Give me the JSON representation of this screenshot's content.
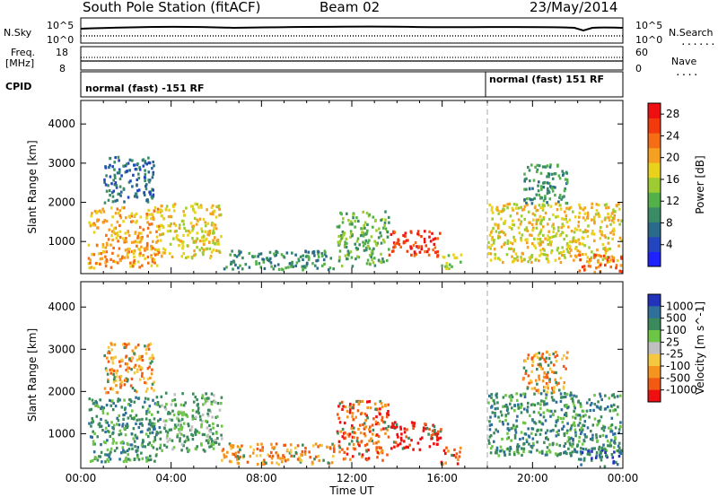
{
  "header": {
    "station": "South Pole Station (fitACF)",
    "beam": "Beam 02",
    "date": "23/May/2014"
  },
  "top_strip": {
    "left_label": "N.Sky",
    "left_ticks": [
      "10^5",
      "10^0"
    ],
    "right_ticks": [
      "10^5",
      "10^0"
    ],
    "right_label": "N.Search",
    "right_marker": "........"
  },
  "freq_strip": {
    "label_line1": "Freq.",
    "label_line2": "[MHz]",
    "left_ticks": [
      "18",
      "8"
    ],
    "right_ticks": [
      "60",
      "0"
    ],
    "right_label": "Nave",
    "right_marker": "...."
  },
  "cpid_strip": {
    "label": "CPID",
    "modes": [
      "normal (fast) -151 RF",
      "normal (fast) 151 RF"
    ]
  },
  "colors": {
    "axis": "#000000",
    "dashed_marker": "#aaaaaa"
  },
  "chart_data": [
    {
      "type": "heatmap",
      "panel": "power",
      "ylabel": "Slant Range [km]",
      "xlabel": "",
      "xlim": [
        "00:00",
        "24:00"
      ],
      "ylim": [
        180,
        4600
      ],
      "yticks": [
        1000,
        2000,
        3000,
        4000
      ],
      "colorbar": {
        "label": "Power [dB]",
        "ticks": [
          "4",
          "8",
          "12",
          "16",
          "20",
          "24",
          "28"
        ],
        "range": [
          0,
          30
        ],
        "colors": [
          "#1f22ff",
          "#2345c0",
          "#2a6a8a",
          "#3a8c66",
          "#52b148",
          "#9ccc32",
          "#e8d21b",
          "#f5a021",
          "#f56d14",
          "#f23a0d",
          "#ee1010"
        ]
      },
      "cpid_change_hour": 18.0,
      "echo_regions": [
        {
          "t0": 0.3,
          "t1": 3.5,
          "r0": 350,
          "r1": 1900,
          "mean_db": 20
        },
        {
          "t0": 3.5,
          "t1": 6.2,
          "r0": 600,
          "r1": 2000,
          "mean_db": 18
        },
        {
          "t0": 1.0,
          "t1": 3.2,
          "r0": 2000,
          "r1": 3200,
          "mean_db": 6
        },
        {
          "t0": 6.2,
          "t1": 11.2,
          "r0": 300,
          "r1": 800,
          "mean_db": 8
        },
        {
          "t0": 11.3,
          "t1": 13.6,
          "r0": 400,
          "r1": 1800,
          "mean_db": 12
        },
        {
          "t0": 13.6,
          "t1": 15.9,
          "r0": 650,
          "r1": 1300,
          "mean_db": 28
        },
        {
          "t0": 15.9,
          "t1": 16.8,
          "r0": 300,
          "r1": 700,
          "mean_db": 14
        },
        {
          "t0": 18.0,
          "t1": 23.9,
          "r0": 500,
          "r1": 2000,
          "mean_db": 18
        },
        {
          "t0": 19.5,
          "t1": 21.5,
          "r0": 2000,
          "r1": 3000,
          "mean_db": 8
        },
        {
          "t0": 22.0,
          "t1": 23.9,
          "r0": 250,
          "r1": 700,
          "mean_db": 24
        }
      ]
    },
    {
      "type": "heatmap",
      "panel": "velocity",
      "ylabel": "Slant Range [km]",
      "xlabel": "Time UT",
      "xlim": [
        "00:00",
        "24:00"
      ],
      "xticks": [
        "00:00",
        "04:00",
        "08:00",
        "12:00",
        "16:00",
        "20:00",
        "00:00"
      ],
      "ylim": [
        180,
        4600
      ],
      "yticks": [
        1000,
        2000,
        3000,
        4000
      ],
      "colorbar": {
        "label": "Velocity [m s^-1]",
        "ticks": [
          "1000",
          "500",
          "100",
          "25",
          "-25",
          "-100",
          "-500",
          "-1000"
        ],
        "colors": [
          "#2233bb",
          "#2f6f9a",
          "#3c8a5c",
          "#6cc544",
          "#c0c0c0",
          "#f5c842",
          "#f5951f",
          "#f25a14",
          "#ee1010"
        ]
      },
      "cpid_change_hour": 18.0,
      "echo_regions": [
        {
          "t0": 0.3,
          "t1": 3.5,
          "r0": 350,
          "r1": 1900,
          "mean_v": 100
        },
        {
          "t0": 3.5,
          "t1": 6.2,
          "r0": 600,
          "r1": 2000,
          "mean_v": 50
        },
        {
          "t0": 1.0,
          "t1": 3.2,
          "r0": 2000,
          "r1": 3200,
          "mean_v": -100
        },
        {
          "t0": 6.2,
          "t1": 11.2,
          "r0": 300,
          "r1": 800,
          "mean_v": -200
        },
        {
          "t0": 11.3,
          "t1": 13.6,
          "r0": 400,
          "r1": 1800,
          "mean_v": -300
        },
        {
          "t0": 13.6,
          "t1": 15.9,
          "r0": 650,
          "r1": 1300,
          "mean_v": -900
        },
        {
          "t0": 15.9,
          "t1": 16.8,
          "r0": 300,
          "r1": 700,
          "mean_v": -500
        },
        {
          "t0": 18.0,
          "t1": 23.9,
          "r0": 500,
          "r1": 2000,
          "mean_v": 200
        },
        {
          "t0": 19.5,
          "t1": 21.5,
          "r0": 2000,
          "r1": 3000,
          "mean_v": -100
        },
        {
          "t0": 22.0,
          "t1": 23.9,
          "r0": 250,
          "r1": 700,
          "mean_v": 400
        }
      ]
    }
  ]
}
